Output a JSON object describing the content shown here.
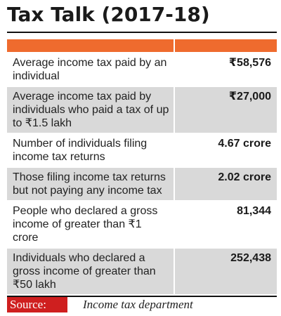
{
  "title": "Tax Talk (2017-18)",
  "colors": {
    "header_band": "#ef6b2e",
    "row_shade": "#d9d9d9",
    "source_box": "#cf1f1f"
  },
  "rows": [
    {
      "label": "Average income tax paid by an individual",
      "value": "₹58,576"
    },
    {
      "label": "Average income tax paid by individuals who paid a tax of up to ₹1.5 lakh",
      "value": "₹27,000"
    },
    {
      "label": "Number of individuals filing income tax returns",
      "value": "4.67 crore"
    },
    {
      "label": "Those filing income tax returns but not paying any income tax",
      "value": "2.02 crore"
    },
    {
      "label": "People who declared a gross income of greater than ₹1 crore",
      "value": "81,344"
    },
    {
      "label": "Individuals who declared a gross income of greater than ₹50 lakh",
      "value": "252,438"
    }
  ],
  "source": {
    "label": "Source:",
    "text": "Income tax department"
  }
}
